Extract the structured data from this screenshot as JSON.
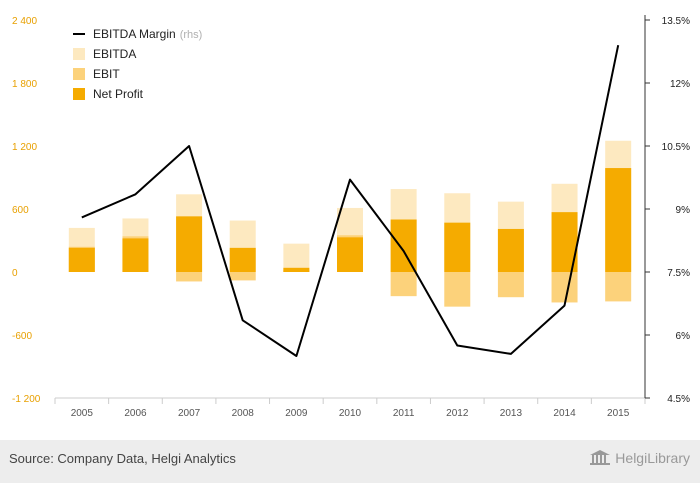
{
  "chart_data": {
    "type": "bar",
    "categories": [
      "2005",
      "2006",
      "2007",
      "2008",
      "2009",
      "2010",
      "2011",
      "2012",
      "2013",
      "2014",
      "2015"
    ],
    "series": [
      {
        "name": "EBITDA",
        "kind": "bar",
        "axis": "left",
        "color": "#fde9c0",
        "values": [
          420,
          510,
          740,
          490,
          270,
          610,
          790,
          750,
          670,
          840,
          1250
        ]
      },
      {
        "name": "EBIT",
        "kind": "bar",
        "axis": "left",
        "color": "#fcd27b",
        "values": [
          240,
          340,
          -90,
          -80,
          20,
          350,
          -230,
          -330,
          -240,
          -290,
          -280
        ]
      },
      {
        "name": "Net Profit",
        "kind": "bar",
        "axis": "left",
        "color": "#f5ab00",
        "values": [
          230,
          320,
          530,
          230,
          40,
          330,
          500,
          470,
          410,
          570,
          990
        ]
      },
      {
        "name": "EBITDA Margin",
        "kind": "line",
        "axis": "right",
        "color": "#000000",
        "values": [
          8.8,
          9.35,
          10.5,
          6.35,
          5.5,
          9.7,
          8.0,
          5.75,
          5.55,
          6.7,
          12.9
        ]
      }
    ],
    "yaxis_left": {
      "min": -1200,
      "max": 2400,
      "ticks": [
        -1200,
        -600,
        0,
        600,
        1200,
        1800,
        2400
      ],
      "tick_labels": [
        "-1 200",
        "-600",
        "0",
        "600",
        "1 200",
        "1 800",
        "2 400"
      ],
      "color": "#e8a000"
    },
    "yaxis_right": {
      "min": 4.5,
      "max": 13.5,
      "ticks": [
        4.5,
        6,
        7.5,
        9,
        10.5,
        12,
        13.5
      ],
      "tick_labels": [
        "4.5%",
        "6%",
        "7.5%",
        "9%",
        "10.5%",
        "12%",
        "13.5%"
      ]
    },
    "legend": {
      "position": "top-left",
      "items": [
        {
          "label": "EBITDA Margin",
          "suffix": "(rhs)",
          "kind": "line",
          "color": "#000000"
        },
        {
          "label": "EBITDA",
          "kind": "box",
          "color": "#fde9c0"
        },
        {
          "label": "EBIT",
          "kind": "box",
          "color": "#fcd27b"
        },
        {
          "label": "Net Profit",
          "kind": "box",
          "color": "#f5ab00"
        }
      ]
    },
    "grid": false
  },
  "footer": {
    "source": "Source: Company Data, Helgi Analytics",
    "brand": "HelgiLibrary",
    "brand_icon": "library-columns-icon"
  }
}
